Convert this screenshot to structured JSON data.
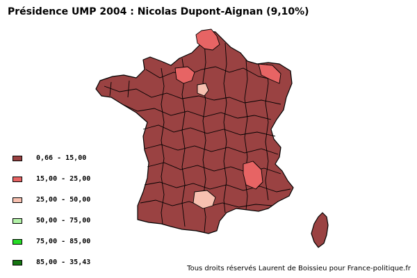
{
  "title": "Présidence UMP 2004 : Nicolas Dupont-Aignan (9,10%)",
  "legend": [
    {
      "label": "0,66 - 15,00",
      "color": "#9a4242"
    },
    {
      "label": "15,00 - 25,00",
      "color": "#e76464"
    },
    {
      "label": "25,00 - 50,00",
      "color": "#f7c0b0"
    },
    {
      "label": "50,00 - 75,00",
      "color": "#b3f2a8"
    },
    {
      "label": "75,00 - 85,00",
      "color": "#27dc27"
    },
    {
      "label": "85,00 - 35,43",
      "color": "#157512"
    }
  ],
  "credit": "Tous droits réservés Laurent de Boissieu pour France-politique.fr",
  "map": {
    "border_color": "#000000",
    "highlighted_regions": [
      {
        "name": "north-15-25",
        "class": "15,00 - 25,00"
      },
      {
        "name": "normandy-15-25",
        "class": "15,00 - 25,00"
      },
      {
        "name": "alsace-15-25",
        "class": "15,00 - 25,00"
      },
      {
        "name": "alps-15-25",
        "class": "15,00 - 25,00"
      },
      {
        "name": "paris-area-25-50",
        "class": "25,00 - 50,00"
      },
      {
        "name": "toulouse-area-25-50",
        "class": "25,00 - 50,00"
      }
    ]
  }
}
